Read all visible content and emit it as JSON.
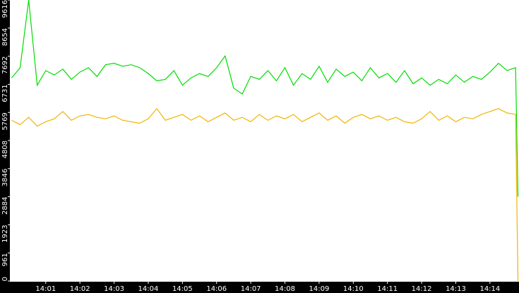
{
  "chart_data": {
    "type": "line",
    "x": [
      0,
      0.25,
      0.5,
      0.75,
      1,
      1.25,
      1.5,
      1.75,
      2,
      2.25,
      2.5,
      2.75,
      3,
      3.25,
      3.5,
      3.75,
      4,
      4.25,
      4.5,
      4.75,
      5,
      5.25,
      5.5,
      5.75,
      6,
      6.25,
      6.5,
      6.75,
      7,
      7.25,
      7.5,
      7.75,
      8,
      8.25,
      8.5,
      8.75,
      9,
      9.25,
      9.5,
      9.75,
      10,
      10.25,
      10.5,
      10.75,
      11,
      11.25,
      11.5,
      11.75,
      12,
      12.25,
      12.5,
      12.75,
      13,
      13.25,
      13.5,
      13.75,
      14,
      14.25,
      14.5,
      14.75,
      14.82
    ],
    "series": [
      {
        "color": "#00dd00",
        "values": [
          6950,
          7300,
          9616,
          6700,
          7200,
          7050,
          7250,
          6900,
          7150,
          7300,
          7000,
          7400,
          7450,
          7350,
          7400,
          7300,
          7100,
          6850,
          6900,
          7200,
          6700,
          6950,
          7100,
          7000,
          7300,
          7700,
          6600,
          6400,
          7000,
          6900,
          7200,
          6850,
          7300,
          6700,
          7100,
          6900,
          7350,
          6800,
          7250,
          7000,
          7150,
          6850,
          7300,
          6950,
          7100,
          6800,
          7200,
          6750,
          6950,
          6700,
          6900,
          6750,
          7050,
          6800,
          7000,
          6900,
          7150,
          7450,
          7200,
          7300,
          2884
        ]
      },
      {
        "color": "#f0b400",
        "values": [
          5500,
          5350,
          5600,
          5300,
          5450,
          5550,
          5800,
          5500,
          5650,
          5700,
          5600,
          5550,
          5650,
          5500,
          5450,
          5400,
          5550,
          5900,
          5500,
          5600,
          5700,
          5500,
          5650,
          5450,
          5600,
          5750,
          5500,
          5600,
          5450,
          5700,
          5500,
          5650,
          5550,
          5700,
          5450,
          5600,
          5750,
          5500,
          5650,
          5400,
          5600,
          5700,
          5550,
          5650,
          5500,
          5600,
          5450,
          5400,
          5550,
          5800,
          5500,
          5650,
          5450,
          5600,
          5550,
          5700,
          5800,
          5900,
          5750,
          5700,
          0
        ]
      }
    ],
    "xlim": [
      -0.05,
      14.85
    ],
    "xticks": [
      {
        "value": 1,
        "label": "14:01"
      },
      {
        "value": 2,
        "label": "14:02"
      },
      {
        "value": 3,
        "label": "14:03"
      },
      {
        "value": 4,
        "label": "14:04"
      },
      {
        "value": 5,
        "label": "14:05"
      },
      {
        "value": 6,
        "label": "14:06"
      },
      {
        "value": 7,
        "label": "14:07"
      },
      {
        "value": 8,
        "label": "14:08"
      },
      {
        "value": 9,
        "label": "14:09"
      },
      {
        "value": 10,
        "label": "14:10"
      },
      {
        "value": 11,
        "label": "14:11"
      },
      {
        "value": 12,
        "label": "14:12"
      },
      {
        "value": 13,
        "label": "14:13"
      },
      {
        "value": 14,
        "label": "14:14"
      }
    ],
    "ylim": [
      0,
      9616
    ],
    "yticks": [
      0,
      961,
      1923,
      2884,
      3846,
      4808,
      5769,
      6731,
      7692,
      8654,
      9616
    ]
  }
}
